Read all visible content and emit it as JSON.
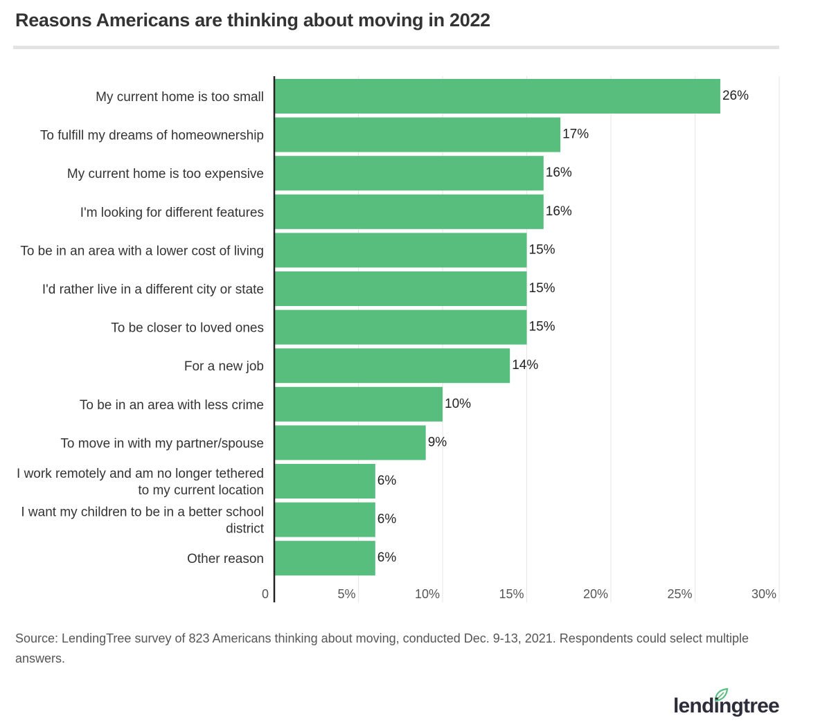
{
  "chart_data": {
    "type": "bar",
    "orientation": "horizontal",
    "title": "Reasons Americans are thinking about moving in 2022",
    "categories": [
      [
        "My current home is too small"
      ],
      [
        "To fulfill my dreams of homeownership"
      ],
      [
        "My current home is too expensive"
      ],
      [
        "I'm looking for different features"
      ],
      [
        "To be in an area with a lower cost of living"
      ],
      [
        "I'd rather live in a different city or state"
      ],
      [
        "To be closer to loved ones"
      ],
      [
        "For a new job"
      ],
      [
        "To be in an area with less crime"
      ],
      [
        "To move in with my partner/spouse"
      ],
      [
        "I work remotely and am no longer tethered",
        "to my current location"
      ],
      [
        "I want my children to be in a better school",
        "district"
      ],
      [
        "Other reason"
      ]
    ],
    "values": [
      26.5,
      17,
      16,
      16,
      15,
      15,
      15,
      14,
      10,
      9,
      6,
      6,
      6
    ],
    "value_labels": [
      "26%",
      "17%",
      "16%",
      "16%",
      "15%",
      "15%",
      "15%",
      "14%",
      "10%",
      "9%",
      "6%",
      "6%",
      "6%"
    ],
    "xlim": [
      0,
      30
    ],
    "x_ticks": [
      0,
      5,
      10,
      15,
      20,
      25,
      30
    ],
    "x_tick_labels": [
      "0",
      "5%",
      "10%",
      "15%",
      "20%",
      "25%",
      "30%"
    ],
    "xlabel": "",
    "ylabel": "",
    "grid": true,
    "bar_color": "#57be7d",
    "grid_color": "#e6e6e6",
    "axis_color": "#222222"
  },
  "source_text": "Source: LendingTree survey of 823 Americans thinking about moving, conducted Dec. 9-13, 2021. Respondents could select multiple answers.",
  "logo": {
    "text": "lendingtree",
    "leaf_color": "#57be7d"
  }
}
